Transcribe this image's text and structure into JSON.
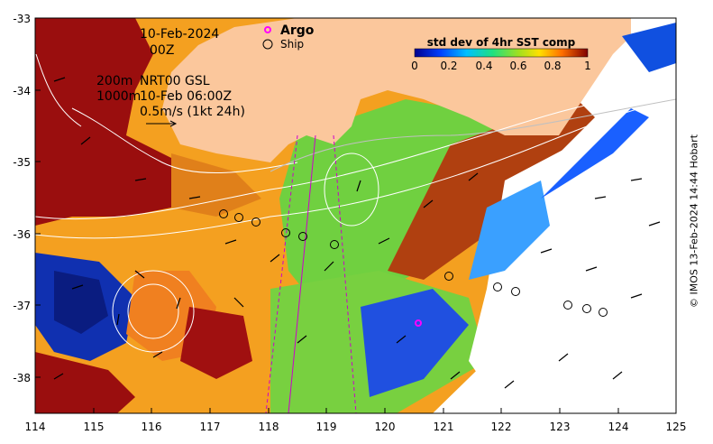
{
  "map": {
    "date_label": "10-Feb-2024",
    "time_label": "00Z",
    "legend_argo": "Argo",
    "legend_ship": "Ship",
    "contour_label_a": "200m",
    "contour_label_b": "1000m",
    "product_label": "NRT00 GSL",
    "product_time": "10-Feb 06:00Z",
    "vector_scale_label": "0.5m/s (1kt 24h)",
    "colorbar_title": "std dev of 4hr SST comp",
    "colorbar_ticks": [
      "0",
      "0.2",
      "0.4",
      "0.6",
      "0.8",
      "1"
    ],
    "credit": "© IMOS 13-Feb-2024 14:44 Hobart",
    "x_ticks": [
      "114",
      "115",
      "116",
      "117",
      "118",
      "119",
      "120",
      "121",
      "122",
      "123",
      "124",
      "125"
    ],
    "y_ticks": [
      "-33",
      "-34",
      "-35",
      "-36",
      "-37",
      "-38"
    ],
    "lon_range": [
      114,
      125
    ],
    "lat_range": [
      -38.5,
      -33
    ],
    "colors": {
      "land": "#fbc79c",
      "argo": "#ff00ff",
      "track": "#cc00cc"
    }
  }
}
